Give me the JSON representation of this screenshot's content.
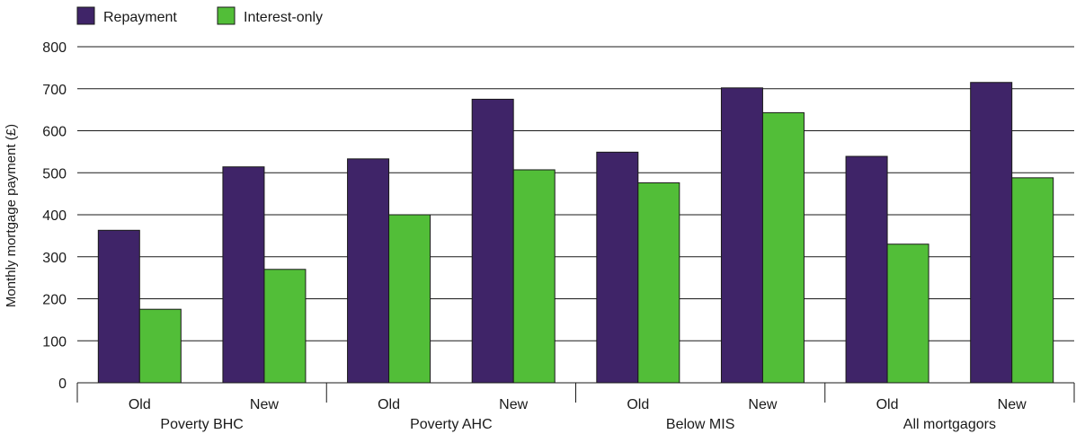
{
  "chart_data": {
    "type": "bar",
    "title": "",
    "xlabel": "",
    "ylabel": "Monthly mortgage payment (£)",
    "ylim": [
      0,
      800
    ],
    "yticks": [
      0,
      100,
      200,
      300,
      400,
      500,
      600,
      700,
      800
    ],
    "grid": true,
    "legend_position": "top-left",
    "groups": [
      {
        "label": "Poverty BHC",
        "categories": [
          "Old",
          "New"
        ]
      },
      {
        "label": "Poverty AHC",
        "categories": [
          "Old",
          "New"
        ]
      },
      {
        "label": "Below MIS",
        "categories": [
          "Old",
          "New"
        ]
      },
      {
        "label": "All mortgagors",
        "categories": [
          "Old",
          "New"
        ]
      }
    ],
    "series": [
      {
        "name": "Repayment",
        "color": "#3f2468",
        "values": [
          363,
          514,
          533,
          675,
          549,
          702,
          539,
          715
        ]
      },
      {
        "name": "Interest-only",
        "color": "#52be38",
        "values": [
          175,
          270,
          400,
          507,
          476,
          643,
          330,
          488
        ]
      }
    ]
  }
}
